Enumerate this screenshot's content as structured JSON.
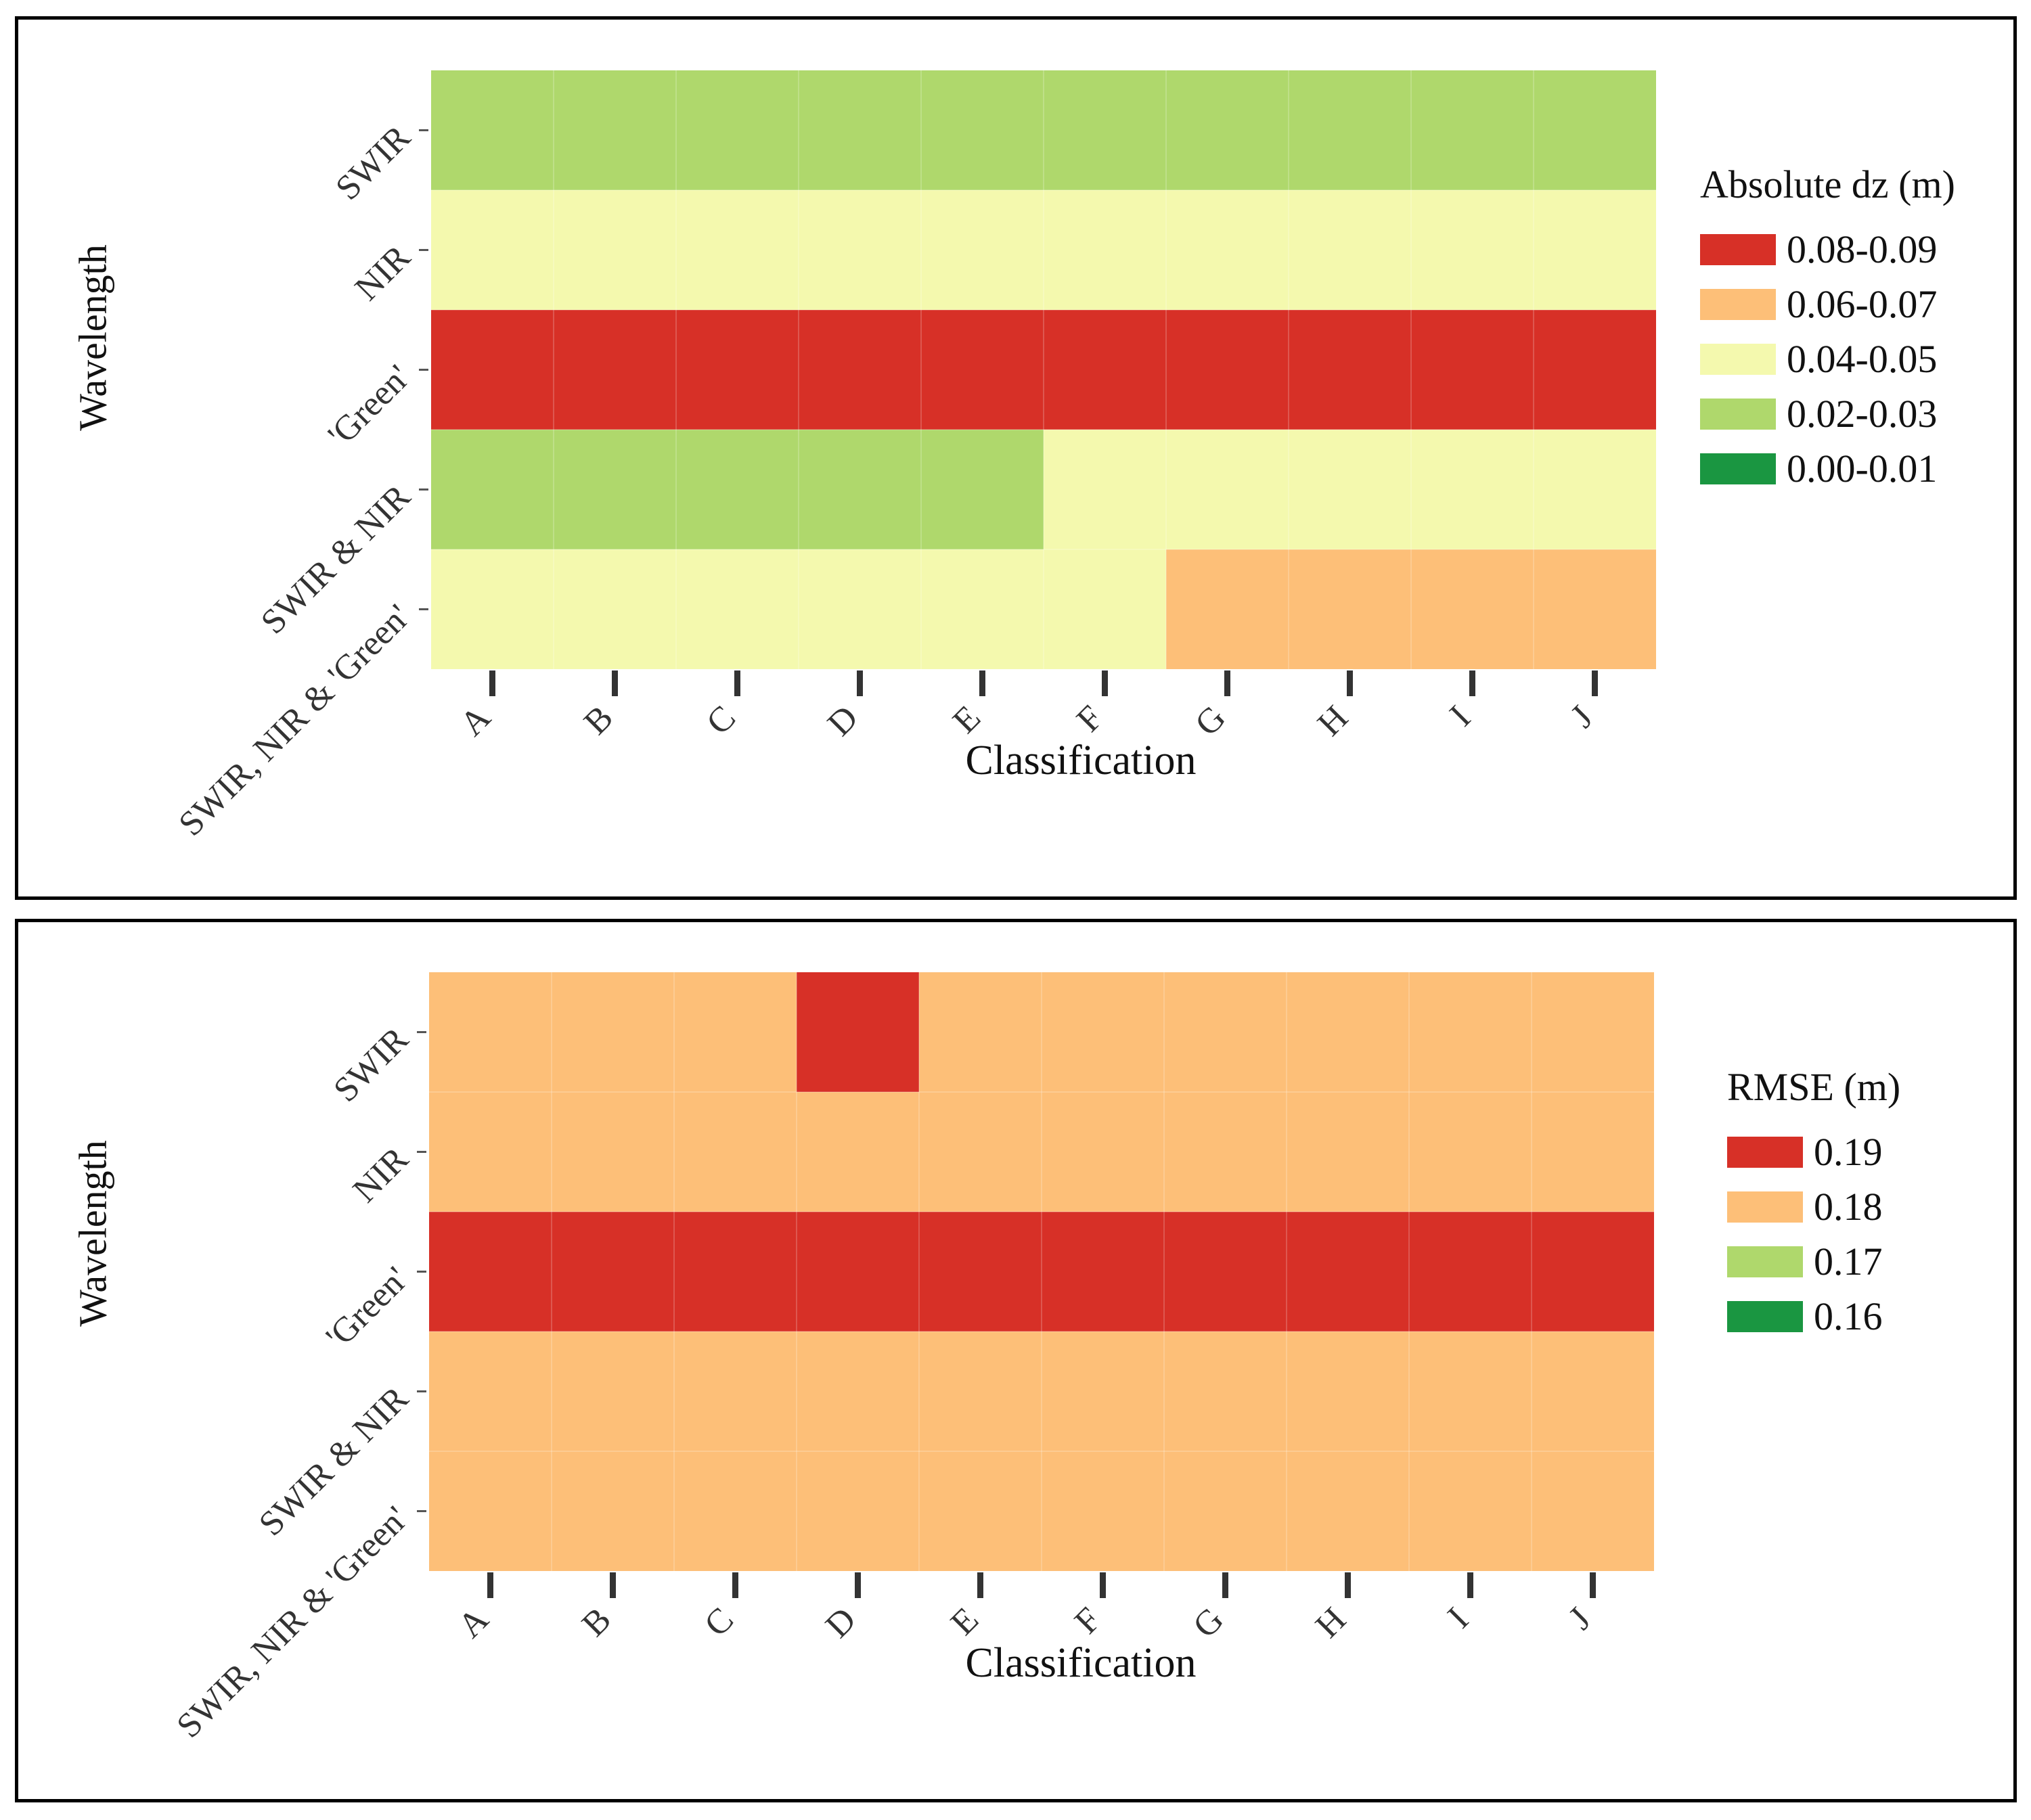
{
  "chart_data": [
    {
      "type": "heatmap",
      "title": "",
      "xlabel": "Classification",
      "ylabel": "Wavelength",
      "x_categories": [
        "A",
        "B",
        "C",
        "D",
        "E",
        "F",
        "G",
        "H",
        "I",
        "J"
      ],
      "y_categories": [
        "SWIR",
        "NIR",
        "'Green'",
        "SWIR & NIR",
        "SWIR, NIR & 'Green'"
      ],
      "legend": {
        "title": "Absolute dz (m)",
        "placement": "right",
        "classes": [
          {
            "label": "0.08-0.09",
            "color": "#d73027"
          },
          {
            "label": "0.06-0.07",
            "color": "#fdbf78"
          },
          {
            "label": "0.04-0.05",
            "color": "#f4f9ae"
          },
          {
            "label": "0.02-0.03",
            "color": "#afd86c"
          },
          {
            "label": "0.00-0.01",
            "color": "#1a9641"
          }
        ]
      },
      "values": [
        [
          "0.02-0.03",
          "0.02-0.03",
          "0.02-0.03",
          "0.02-0.03",
          "0.02-0.03",
          "0.02-0.03",
          "0.02-0.03",
          "0.02-0.03",
          "0.02-0.03",
          "0.02-0.03"
        ],
        [
          "0.04-0.05",
          "0.04-0.05",
          "0.04-0.05",
          "0.04-0.05",
          "0.04-0.05",
          "0.04-0.05",
          "0.04-0.05",
          "0.04-0.05",
          "0.04-0.05",
          "0.04-0.05"
        ],
        [
          "0.08-0.09",
          "0.08-0.09",
          "0.08-0.09",
          "0.08-0.09",
          "0.08-0.09",
          "0.08-0.09",
          "0.08-0.09",
          "0.08-0.09",
          "0.08-0.09",
          "0.08-0.09"
        ],
        [
          "0.02-0.03",
          "0.02-0.03",
          "0.02-0.03",
          "0.02-0.03",
          "0.02-0.03",
          "0.04-0.05",
          "0.04-0.05",
          "0.04-0.05",
          "0.04-0.05",
          "0.04-0.05"
        ],
        [
          "0.04-0.05",
          "0.04-0.05",
          "0.04-0.05",
          "0.04-0.05",
          "0.04-0.05",
          "0.04-0.05",
          "0.06-0.07",
          "0.06-0.07",
          "0.06-0.07",
          "0.06-0.07"
        ]
      ]
    },
    {
      "type": "heatmap",
      "title": "",
      "xlabel": "Classification",
      "ylabel": "Wavelength",
      "x_categories": [
        "A",
        "B",
        "C",
        "D",
        "E",
        "F",
        "G",
        "H",
        "I",
        "J"
      ],
      "y_categories": [
        "SWIR",
        "NIR",
        "'Green'",
        "SWIR & NIR",
        "SWIR, NIR & 'Green'"
      ],
      "legend": {
        "title": "RMSE (m)",
        "placement": "right",
        "classes": [
          {
            "label": "0.19",
            "color": "#d73027"
          },
          {
            "label": "0.18",
            "color": "#fdbf78"
          },
          {
            "label": "0.17",
            "color": "#afd86c"
          },
          {
            "label": "0.16",
            "color": "#1a9641"
          }
        ]
      },
      "values": [
        [
          "0.18",
          "0.18",
          "0.18",
          "0.19",
          "0.18",
          "0.18",
          "0.18",
          "0.18",
          "0.18",
          "0.18"
        ],
        [
          "0.18",
          "0.18",
          "0.18",
          "0.18",
          "0.18",
          "0.18",
          "0.18",
          "0.18",
          "0.18",
          "0.18"
        ],
        [
          "0.19",
          "0.19",
          "0.19",
          "0.19",
          "0.19",
          "0.19",
          "0.19",
          "0.19",
          "0.19",
          "0.19"
        ],
        [
          "0.18",
          "0.18",
          "0.18",
          "0.18",
          "0.18",
          "0.18",
          "0.18",
          "0.18",
          "0.18",
          "0.18"
        ],
        [
          "0.18",
          "0.18",
          "0.18",
          "0.18",
          "0.18",
          "0.18",
          "0.18",
          "0.18",
          "0.18",
          "0.18"
        ]
      ]
    }
  ]
}
